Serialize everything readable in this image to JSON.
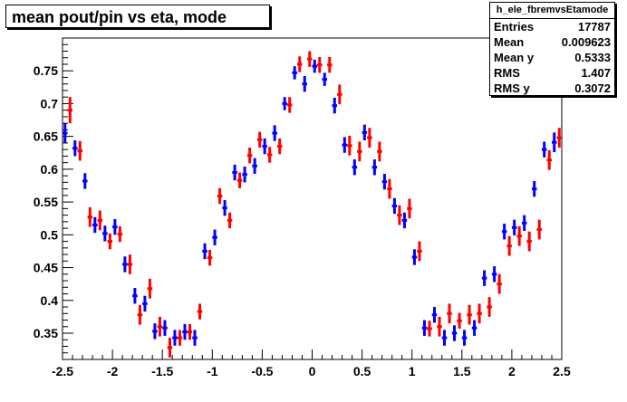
{
  "title": "mean pout/pin vs eta, mode",
  "stats": {
    "name": "h_ele_fbremvsEtamode",
    "rows": [
      {
        "label": "Entries",
        "value": "17787"
      },
      {
        "label": "Mean",
        "value": "0.009623"
      },
      {
        "label": "Mean y",
        "value": "0.5333"
      },
      {
        "label": "RMS",
        "value": "1.407"
      },
      {
        "label": "RMS y",
        "value": "0.3072"
      }
    ]
  },
  "colors": {
    "blue": "#0000ff",
    "red": "#ff0000"
  },
  "chart_data": {
    "type": "scatter",
    "title": "mean pout/pin vs eta, mode",
    "xlim": [
      -2.5,
      2.5
    ],
    "ylim": [
      0.31,
      0.8
    ],
    "xticks": [
      -2.5,
      -2,
      -1.5,
      -1,
      -0.5,
      0,
      0.5,
      1,
      1.5,
      2,
      2.5
    ],
    "xtick_labels": [
      "-2.5",
      "-2",
      "-1.5",
      "-1",
      "-0.5",
      "0",
      "0.5",
      "1",
      "1.5",
      "2",
      "2.5"
    ],
    "yticks": [
      0.35,
      0.4,
      0.45,
      0.5,
      0.55,
      0.6,
      0.65,
      0.7,
      0.75
    ],
    "ytick_labels": [
      "0.35",
      "0.4",
      "0.45",
      "0.5",
      "0.55",
      "0.6",
      "0.65",
      "0.7",
      "0.75"
    ],
    "bin_half_width": 0.025,
    "series": [
      {
        "color": "#0000ff",
        "x_offset": -0.025,
        "points": [
          [
            -2.45,
            0.655,
            0.015
          ],
          [
            -2.35,
            0.632,
            0.012
          ],
          [
            -2.25,
            0.582,
            0.012
          ],
          [
            -2.15,
            0.515,
            0.012
          ],
          [
            -2.05,
            0.502,
            0.012
          ],
          [
            -1.95,
            0.512,
            0.012
          ],
          [
            -1.85,
            0.455,
            0.012
          ],
          [
            -1.75,
            0.407,
            0.012
          ],
          [
            -1.65,
            0.395,
            0.012
          ],
          [
            -1.55,
            0.353,
            0.012
          ],
          [
            -1.45,
            0.358,
            0.012
          ],
          [
            -1.35,
            0.343,
            0.012
          ],
          [
            -1.25,
            0.352,
            0.012
          ],
          [
            -1.15,
            0.343,
            0.012
          ],
          [
            -1.05,
            0.475,
            0.012
          ],
          [
            -0.95,
            0.496,
            0.012
          ],
          [
            -0.85,
            0.541,
            0.012
          ],
          [
            -0.75,
            0.595,
            0.012
          ],
          [
            -0.65,
            0.592,
            0.012
          ],
          [
            -0.55,
            0.605,
            0.012
          ],
          [
            -0.45,
            0.635,
            0.012
          ],
          [
            -0.35,
            0.655,
            0.012
          ],
          [
            -0.25,
            0.7,
            0.01
          ],
          [
            -0.15,
            0.747,
            0.01
          ],
          [
            -0.05,
            0.73,
            0.012
          ],
          [
            0.05,
            0.757,
            0.01
          ],
          [
            0.15,
            0.737,
            0.01
          ],
          [
            0.25,
            0.697,
            0.012
          ],
          [
            0.35,
            0.637,
            0.012
          ],
          [
            0.45,
            0.603,
            0.012
          ],
          [
            0.55,
            0.656,
            0.012
          ],
          [
            0.65,
            0.603,
            0.012
          ],
          [
            0.75,
            0.581,
            0.012
          ],
          [
            0.85,
            0.544,
            0.012
          ],
          [
            0.95,
            0.522,
            0.012
          ],
          [
            1.05,
            0.466,
            0.012
          ],
          [
            1.15,
            0.358,
            0.012
          ],
          [
            1.25,
            0.378,
            0.012
          ],
          [
            1.35,
            0.343,
            0.012
          ],
          [
            1.45,
            0.35,
            0.012
          ],
          [
            1.55,
            0.343,
            0.012
          ],
          [
            1.65,
            0.358,
            0.012
          ],
          [
            1.75,
            0.434,
            0.012
          ],
          [
            1.85,
            0.44,
            0.012
          ],
          [
            1.95,
            0.505,
            0.012
          ],
          [
            2.05,
            0.511,
            0.012
          ],
          [
            2.15,
            0.518,
            0.012
          ],
          [
            2.25,
            0.57,
            0.012
          ],
          [
            2.35,
            0.63,
            0.012
          ],
          [
            2.45,
            0.641,
            0.015
          ]
        ]
      },
      {
        "color": "#ff0000",
        "x_offset": 0.025,
        "points": [
          [
            -2.45,
            0.69,
            0.02
          ],
          [
            -2.35,
            0.628,
            0.015
          ],
          [
            -2.25,
            0.527,
            0.015
          ],
          [
            -2.15,
            0.522,
            0.015
          ],
          [
            -2.05,
            0.49,
            0.012
          ],
          [
            -1.95,
            0.501,
            0.012
          ],
          [
            -1.85,
            0.455,
            0.015
          ],
          [
            -1.75,
            0.378,
            0.015
          ],
          [
            -1.65,
            0.418,
            0.015
          ],
          [
            -1.55,
            0.36,
            0.015
          ],
          [
            -1.45,
            0.328,
            0.015
          ],
          [
            -1.35,
            0.343,
            0.012
          ],
          [
            -1.25,
            0.352,
            0.012
          ],
          [
            -1.15,
            0.383,
            0.012
          ],
          [
            -1.05,
            0.465,
            0.012
          ],
          [
            -0.95,
            0.559,
            0.012
          ],
          [
            -0.85,
            0.522,
            0.012
          ],
          [
            -0.75,
            0.583,
            0.012
          ],
          [
            -0.65,
            0.621,
            0.012
          ],
          [
            -0.55,
            0.645,
            0.012
          ],
          [
            -0.45,
            0.622,
            0.012
          ],
          [
            -0.35,
            0.635,
            0.012
          ],
          [
            -0.25,
            0.698,
            0.012
          ],
          [
            -0.15,
            0.76,
            0.012
          ],
          [
            -0.05,
            0.768,
            0.012
          ],
          [
            0.05,
            0.759,
            0.012
          ],
          [
            0.15,
            0.759,
            0.012
          ],
          [
            0.25,
            0.714,
            0.015
          ],
          [
            0.35,
            0.636,
            0.015
          ],
          [
            0.45,
            0.627,
            0.015
          ],
          [
            0.55,
            0.648,
            0.015
          ],
          [
            0.65,
            0.627,
            0.015
          ],
          [
            0.75,
            0.57,
            0.015
          ],
          [
            0.85,
            0.53,
            0.015
          ],
          [
            0.95,
            0.54,
            0.015
          ],
          [
            1.05,
            0.475,
            0.015
          ],
          [
            1.15,
            0.357,
            0.012
          ],
          [
            1.25,
            0.36,
            0.015
          ],
          [
            1.35,
            0.38,
            0.015
          ],
          [
            1.45,
            0.369,
            0.012
          ],
          [
            1.55,
            0.378,
            0.015
          ],
          [
            1.65,
            0.38,
            0.015
          ],
          [
            1.75,
            0.39,
            0.015
          ],
          [
            1.85,
            0.425,
            0.015
          ],
          [
            1.95,
            0.483,
            0.015
          ],
          [
            2.05,
            0.498,
            0.015
          ],
          [
            2.15,
            0.49,
            0.015
          ],
          [
            2.25,
            0.508,
            0.015
          ],
          [
            2.35,
            0.614,
            0.015
          ],
          [
            2.45,
            0.648,
            0.015
          ]
        ]
      }
    ]
  }
}
